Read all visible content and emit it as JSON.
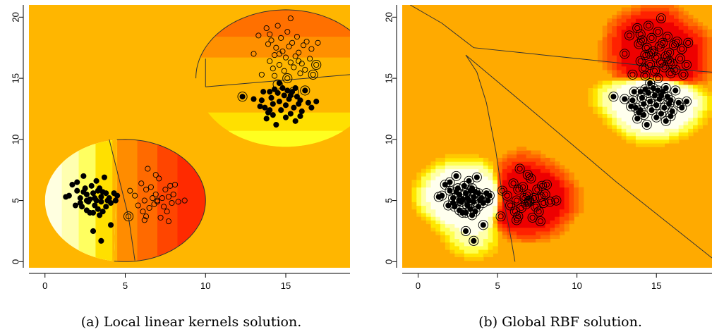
{
  "chart_data": [
    {
      "type": "scatter",
      "caption": "(a) Local linear kernels solution.",
      "xlim": [
        -1,
        19
      ],
      "ylim": [
        -0.5,
        21
      ],
      "xticks": [
        0,
        5,
        10,
        15
      ],
      "yticks": [
        0,
        5,
        10,
        15,
        20
      ],
      "background_color": "#FFB600",
      "regions": [
        {
          "name": "lower-left-half-disk",
          "cx": 5,
          "cy": 5,
          "r": 5,
          "side": "left",
          "colors": [
            "#FFFFE0",
            "#FFFFB0",
            "#FFFF60",
            "#FFE000",
            "#FFB600"
          ]
        },
        {
          "name": "lower-right-half-disk",
          "cx": 5,
          "cy": 5,
          "r": 5,
          "side": "right",
          "colors": [
            "#FF8C00",
            "#FF6A00",
            "#FF4500",
            "#FF2A00"
          ]
        },
        {
          "name": "upper-top-half-disk",
          "cx": 15,
          "cy": 15,
          "r": 9,
          "side": "top",
          "colors": [
            "#FFB600",
            "#FF9000",
            "#FF7000"
          ]
        },
        {
          "name": "upper-bottom-half-disk",
          "cx": 15,
          "cy": 15,
          "r": 9,
          "side": "bottom",
          "colors": [
            "#FFB600",
            "#FFE000",
            "#FFFF20"
          ]
        }
      ],
      "class_filled": [
        [
          1.3,
          5.3
        ],
        [
          1.5,
          5.4
        ],
        [
          1.7,
          6.3
        ],
        [
          2.0,
          6.5
        ],
        [
          2.0,
          5.8
        ],
        [
          2.2,
          5.2
        ],
        [
          2.2,
          4.8
        ],
        [
          2.3,
          4.5
        ],
        [
          2.4,
          7.0
        ],
        [
          2.5,
          6.0
        ],
        [
          2.6,
          5.5
        ],
        [
          2.6,
          4.2
        ],
        [
          2.7,
          4.9
        ],
        [
          2.8,
          5.1
        ],
        [
          2.9,
          6.2
        ],
        [
          3.0,
          2.5
        ],
        [
          3.0,
          4.0
        ],
        [
          3.0,
          5.6
        ],
        [
          3.1,
          4.6
        ],
        [
          3.2,
          5.0
        ],
        [
          3.2,
          6.6
        ],
        [
          3.3,
          4.3
        ],
        [
          3.3,
          5.8
        ],
        [
          3.4,
          3.8
        ],
        [
          3.4,
          6.0
        ],
        [
          3.5,
          1.7
        ],
        [
          3.5,
          4.9
        ],
        [
          3.5,
          5.3
        ],
        [
          3.6,
          4.1
        ],
        [
          3.7,
          6.9
        ],
        [
          3.8,
          5.6
        ],
        [
          3.8,
          4.5
        ],
        [
          3.9,
          5.0
        ],
        [
          4.0,
          5.2
        ],
        [
          4.1,
          4.8
        ],
        [
          4.1,
          3.0
        ],
        [
          4.3,
          5.6
        ],
        [
          4.4,
          5.0
        ],
        [
          4.5,
          5.4
        ],
        [
          2.8,
          4.0
        ],
        [
          1.9,
          4.6
        ],
        [
          2.4,
          5.7
        ],
        [
          3.6,
          5.7
        ],
        [
          3.1,
          5.2
        ],
        [
          2.6,
          5.0
        ],
        [
          12.3,
          13.5
        ],
        [
          13.0,
          13.3
        ],
        [
          13.4,
          12.7
        ],
        [
          13.5,
          13.2
        ],
        [
          13.7,
          12.6
        ],
        [
          13.8,
          11.7
        ],
        [
          13.9,
          12.2
        ],
        [
          14.0,
          13.9
        ],
        [
          14.1,
          13.4
        ],
        [
          14.2,
          12.9
        ],
        [
          14.3,
          14.1
        ],
        [
          14.4,
          11.2
        ],
        [
          14.5,
          13.8
        ],
        [
          14.6,
          13.1
        ],
        [
          14.7,
          12.4
        ],
        [
          14.8,
          14.2
        ],
        [
          14.9,
          13.6
        ],
        [
          15.0,
          12.8
        ],
        [
          15.1,
          14.0
        ],
        [
          15.2,
          13.3
        ],
        [
          15.3,
          12.1
        ],
        [
          15.4,
          13.9
        ],
        [
          15.5,
          12.6
        ],
        [
          15.6,
          11.5
        ],
        [
          15.7,
          13.5
        ],
        [
          15.8,
          12.9
        ],
        [
          15.9,
          13.2
        ],
        [
          16.0,
          12.3
        ],
        [
          16.2,
          14.0
        ],
        [
          16.4,
          13.0
        ],
        [
          16.6,
          12.6
        ],
        [
          16.9,
          13.1
        ],
        [
          14.2,
          12.0
        ],
        [
          15.0,
          11.8
        ],
        [
          14.6,
          14.6
        ],
        [
          15.3,
          13.6
        ],
        [
          14.0,
          12.4
        ],
        [
          15.9,
          11.9
        ],
        [
          15.6,
          14.2
        ],
        [
          13.6,
          13.9
        ]
      ],
      "class_open": [
        [
          5.2,
          3.7
        ],
        [
          5.3,
          5.8
        ],
        [
          5.6,
          5.4
        ],
        [
          5.8,
          4.6
        ],
        [
          6.0,
          6.4
        ],
        [
          6.1,
          4.1
        ],
        [
          6.2,
          5.0
        ],
        [
          6.3,
          3.7
        ],
        [
          6.3,
          5.9
        ],
        [
          6.4,
          7.6
        ],
        [
          6.5,
          4.4
        ],
        [
          6.6,
          6.1
        ],
        [
          6.7,
          5.2
        ],
        [
          6.8,
          4.7
        ],
        [
          6.9,
          5.5
        ],
        [
          7.0,
          4.9
        ],
        [
          7.1,
          6.8
        ],
        [
          7.2,
          3.6
        ],
        [
          7.3,
          5.2
        ],
        [
          7.4,
          4.5
        ],
        [
          7.5,
          5.9
        ],
        [
          7.6,
          4.1
        ],
        [
          7.7,
          5.3
        ],
        [
          7.8,
          6.2
        ],
        [
          7.9,
          4.8
        ],
        [
          8.0,
          5.5
        ],
        [
          8.1,
          6.3
        ],
        [
          8.3,
          4.9
        ],
        [
          8.7,
          5.0
        ],
        [
          6.9,
          7.1
        ],
        [
          6.2,
          3.4
        ],
        [
          7.7,
          3.3
        ],
        [
          7.0,
          5.0
        ],
        [
          13.0,
          17.0
        ],
        [
          13.5,
          15.3
        ],
        [
          13.8,
          19.1
        ],
        [
          13.9,
          17.8
        ],
        [
          14.0,
          16.4
        ],
        [
          14.1,
          18.1
        ],
        [
          14.2,
          15.8
        ],
        [
          14.3,
          16.9
        ],
        [
          14.4,
          17.5
        ],
        [
          14.5,
          19.3
        ],
        [
          14.6,
          16.1
        ],
        [
          14.7,
          18.3
        ],
        [
          14.8,
          17.2
        ],
        [
          14.9,
          15.6
        ],
        [
          15.0,
          16.7
        ],
        [
          15.1,
          18.8
        ],
        [
          15.2,
          17.6
        ],
        [
          15.3,
          16.3
        ],
        [
          15.4,
          17.9
        ],
        [
          15.5,
          15.9
        ],
        [
          15.6,
          16.8
        ],
        [
          15.7,
          18.4
        ],
        [
          15.8,
          17.1
        ],
        [
          15.9,
          15.4
        ],
        [
          16.0,
          16.2
        ],
        [
          16.1,
          17.7
        ],
        [
          16.2,
          15.7
        ],
        [
          16.3,
          18.0
        ],
        [
          16.5,
          16.6
        ],
        [
          16.7,
          15.3
        ],
        [
          16.9,
          16.1
        ],
        [
          17.0,
          17.9
        ],
        [
          14.0,
          18.6
        ],
        [
          15.3,
          19.9
        ],
        [
          14.6,
          17.0
        ],
        [
          13.3,
          18.5
        ],
        [
          15.8,
          16.4
        ],
        [
          16.6,
          17.4
        ],
        [
          14.3,
          15.2
        ],
        [
          15.1,
          15.0
        ]
      ],
      "ringed": [
        [
          12.3,
          13.5
        ],
        [
          15.1,
          15.0
        ],
        [
          16.7,
          15.3
        ],
        [
          16.9,
          16.1
        ],
        [
          5.2,
          3.7
        ],
        [
          14.5,
          14.5
        ],
        [
          15.5,
          13.9
        ],
        [
          16.2,
          14.0
        ]
      ]
    },
    {
      "type": "scatter",
      "caption": "(b) Global RBF solution.",
      "xlim": [
        -1,
        18.5
      ],
      "ylim": [
        -0.5,
        21
      ],
      "xticks": [
        0,
        5,
        10,
        15
      ],
      "yticks": [
        0,
        5,
        10,
        15,
        20
      ],
      "background_color": "#FFAA00",
      "colors_pos": [
        "#FFAA00",
        "#FFC800",
        "#FFE600",
        "#FFFF50",
        "#FFFFA8",
        "#FFFFEE"
      ],
      "colors_neg": [
        "#FFAA00",
        "#FF8A00",
        "#FF6A00",
        "#FF4A00",
        "#FF2200",
        "#EE0000"
      ],
      "boundaries": [
        [
          [
            -0.5,
            21
          ],
          [
            1.5,
            19.5
          ],
          [
            3.5,
            17.5
          ],
          [
            17.5,
            15.6
          ],
          [
            18.5,
            15.5
          ]
        ],
        [
          [
            3,
            16.9
          ],
          [
            3.7,
            15.5
          ],
          [
            4.3,
            13
          ],
          [
            4.9,
            9
          ],
          [
            5.3,
            5.5
          ],
          [
            5.7,
            3
          ],
          [
            6.1,
            0
          ]
        ],
        [
          [
            3,
            16.9
          ],
          [
            7.5,
            12
          ],
          [
            12.5,
            6.5
          ],
          [
            18.5,
            0.3
          ]
        ]
      ]
    }
  ]
}
